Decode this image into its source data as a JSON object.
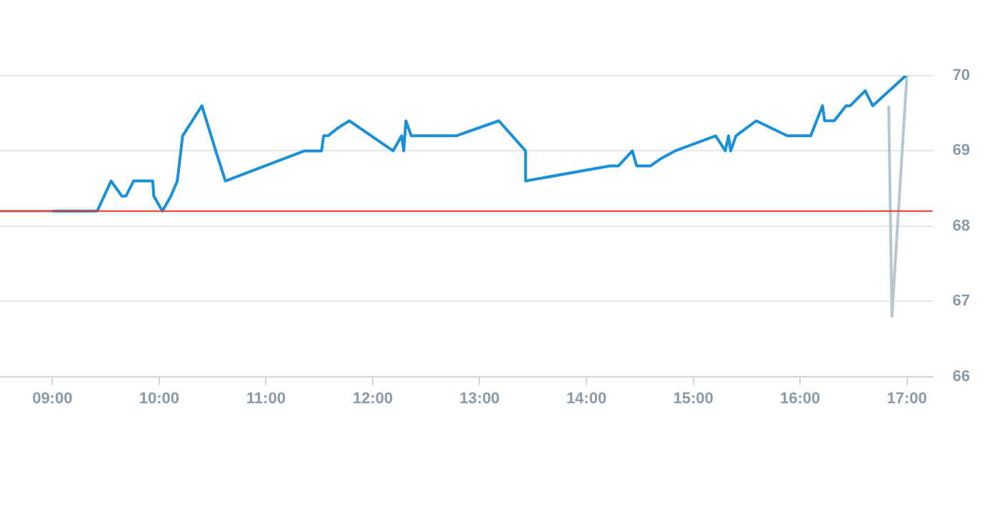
{
  "chart_data": {
    "type": "line",
    "xlim": [
      8.51,
      17.24
    ],
    "ylim": [
      66,
      70
    ],
    "xticks": [
      {
        "value": 9,
        "label": "09:00"
      },
      {
        "value": 10,
        "label": "10:00"
      },
      {
        "value": 11,
        "label": "11:00"
      },
      {
        "value": 12,
        "label": "12:00"
      },
      {
        "value": 13,
        "label": "13:00"
      },
      {
        "value": 14,
        "label": "14:00"
      },
      {
        "value": 15,
        "label": "15:00"
      },
      {
        "value": 16,
        "label": "16:00"
      },
      {
        "value": 17,
        "label": "17:00"
      }
    ],
    "yticks": [
      66,
      67,
      68,
      69,
      70
    ],
    "grid": "y",
    "legend": false,
    "marker": "none",
    "line_style": "solid",
    "ref_lines": [
      {
        "axis": "y",
        "value": 68.2,
        "color": "#e53935"
      }
    ],
    "series": [
      {
        "color": "#1a90d9",
        "x": [
          9.0,
          9.42,
          9.55,
          9.65,
          9.69,
          9.76,
          9.94,
          9.95,
          10.03,
          10.11,
          10.17,
          10.22,
          10.4,
          10.53,
          10.62,
          11.36,
          11.52,
          11.54,
          11.58,
          11.67,
          11.78,
          12.19,
          12.27,
          12.29,
          12.31,
          12.36,
          12.78,
          13.18,
          13.43,
          13.43,
          14.22,
          14.3,
          14.43,
          14.47,
          14.6,
          14.7,
          14.83,
          15.21,
          15.3,
          15.33,
          15.35,
          15.4,
          15.59,
          15.88,
          16.1,
          16.21,
          16.23,
          16.32,
          16.43,
          16.47,
          16.61,
          16.68,
          16.99
        ],
        "values": [
          68.2,
          68.2,
          68.6,
          68.4,
          68.4,
          68.6,
          68.6,
          68.4,
          68.2,
          68.4,
          68.6,
          69.2,
          69.6,
          69.0,
          68.6,
          69.0,
          69.0,
          69.2,
          69.2,
          69.3,
          69.4,
          69.0,
          69.2,
          69.0,
          69.4,
          69.2,
          69.2,
          69.4,
          69.0,
          68.6,
          68.8,
          68.8,
          69.0,
          68.8,
          68.8,
          68.9,
          69.0,
          69.2,
          69.0,
          69.2,
          69.0,
          69.2,
          69.4,
          69.2,
          69.2,
          69.6,
          69.4,
          69.4,
          69.6,
          69.6,
          69.8,
          69.6,
          70.0
        ]
      },
      {
        "color": "#b8c6d0",
        "x": [
          8.51,
          9.0
        ],
        "values": [
          68.2,
          68.2
        ]
      },
      {
        "color": "#b8c6d0",
        "x": [
          16.83,
          16.86,
          17.0
        ],
        "values": [
          69.6,
          66.8,
          70.0
        ]
      }
    ]
  }
}
